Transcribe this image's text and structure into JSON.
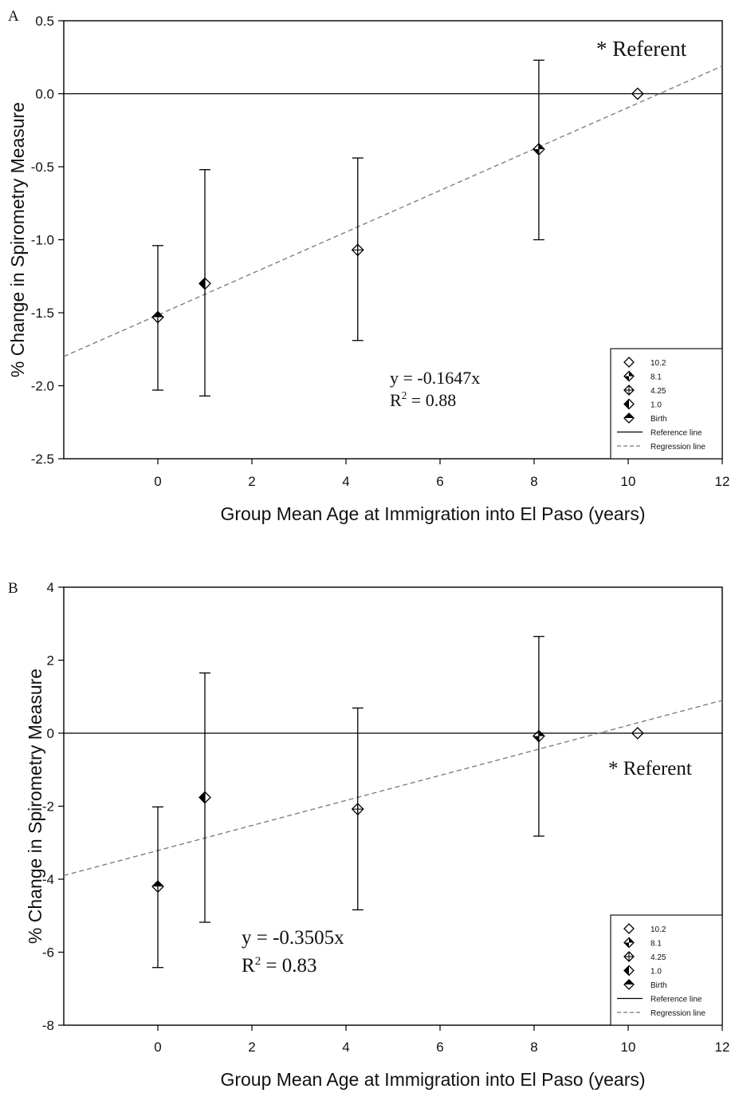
{
  "chart_data": [
    {
      "type": "scatter",
      "panel_label": "A",
      "xlabel": "Group Mean Age at Immigration into El Paso (years)",
      "ylabel": "% Change in Spirometry Measure",
      "xlim": [
        -2,
        12
      ],
      "ylim": [
        -2.5,
        0.5
      ],
      "xticks": [
        0,
        2,
        4,
        6,
        8,
        10,
        12
      ],
      "yticks": [
        0.5,
        0.0,
        -0.5,
        -1.0,
        -1.5,
        -2.0,
        -2.5
      ],
      "ytick_labels": [
        "0.5",
        "0.0",
        "-0.5",
        "-1.0",
        "-1.5",
        "-2.0",
        "-2.5"
      ],
      "points": [
        {
          "label": "10.2",
          "x": 10.2,
          "y": 0.0,
          "marker": "open",
          "lower": null,
          "upper": null
        },
        {
          "label": "8.1",
          "x": 8.1,
          "y": -0.38,
          "marker": "quad",
          "lower": -1.0,
          "upper": 0.23
        },
        {
          "label": "4.25",
          "x": 4.25,
          "y": -1.07,
          "marker": "cross",
          "lower": -1.69,
          "upper": -0.44
        },
        {
          "label": "1.0",
          "x": 1.0,
          "y": -1.3,
          "marker": "left",
          "lower": -2.07,
          "upper": -0.52
        },
        {
          "label": "Birth",
          "x": 0.0,
          "y": -1.53,
          "marker": "top",
          "lower": -2.03,
          "upper": -1.04
        }
      ],
      "reference_line_y": 0,
      "regression": {
        "x1": -2,
        "y1": -1.8,
        "x2": 12,
        "y2": 0.19
      },
      "equation": "y = -0.1647x",
      "r2_prefix": "R",
      "r2_sup": "2",
      "r2_value": " = 0.88",
      "referent": "* Referent",
      "legend": {
        "position": "bottom-right",
        "items": [
          {
            "label": "10.2",
            "marker": "open"
          },
          {
            "label": "8.1",
            "marker": "quad"
          },
          {
            "label": "4.25",
            "marker": "cross"
          },
          {
            "label": "1.0",
            "marker": "left"
          },
          {
            "label": "Birth",
            "marker": "top"
          },
          {
            "label": "Reference line",
            "line": "solid"
          },
          {
            "label": "Regression line",
            "line": "dashed"
          }
        ]
      }
    },
    {
      "type": "scatter",
      "panel_label": "B",
      "xlabel": "Group Mean Age at Immigration into El Paso (years)",
      "ylabel": "% Change in Spirometry Measure",
      "xlim": [
        -2,
        12
      ],
      "ylim": [
        -8,
        4
      ],
      "xticks": [
        0,
        2,
        4,
        6,
        8,
        10,
        12
      ],
      "yticks": [
        4,
        2,
        0,
        -2,
        -4,
        -6,
        -8
      ],
      "ytick_labels": [
        "4",
        "2",
        "0",
        "-2",
        "-4",
        "-6",
        "-8"
      ],
      "points": [
        {
          "label": "10.2",
          "x": 10.2,
          "y": 0.0,
          "marker": "open",
          "lower": null,
          "upper": null
        },
        {
          "label": "8.1",
          "x": 8.1,
          "y": -0.08,
          "marker": "quad",
          "lower": -2.82,
          "upper": 2.65
        },
        {
          "label": "4.25",
          "x": 4.25,
          "y": -2.08,
          "marker": "cross",
          "lower": -4.84,
          "upper": 0.69
        },
        {
          "label": "1.0",
          "x": 1.0,
          "y": -1.76,
          "marker": "left",
          "lower": -5.18,
          "upper": 1.65
        },
        {
          "label": "Birth",
          "x": 0.0,
          "y": -4.2,
          "marker": "top",
          "lower": -6.42,
          "upper": -2.02
        }
      ],
      "reference_line_y": 0,
      "regression": {
        "x1": -2,
        "y1": -3.9,
        "x2": 12,
        "y2": 0.9
      },
      "equation": "y = -0.3505x",
      "r2_prefix": "R",
      "r2_sup": "2",
      "r2_value": " = 0.83",
      "referent": "* Referent",
      "legend": {
        "position": "bottom-right",
        "items": [
          {
            "label": "10.2",
            "marker": "open"
          },
          {
            "label": "8.1",
            "marker": "quad"
          },
          {
            "label": "4.25",
            "marker": "cross"
          },
          {
            "label": "1.0",
            "marker": "left"
          },
          {
            "label": "Birth",
            "marker": "top"
          },
          {
            "label": "Reference line",
            "line": "solid"
          },
          {
            "label": "Regression line",
            "line": "dashed"
          }
        ]
      }
    }
  ]
}
